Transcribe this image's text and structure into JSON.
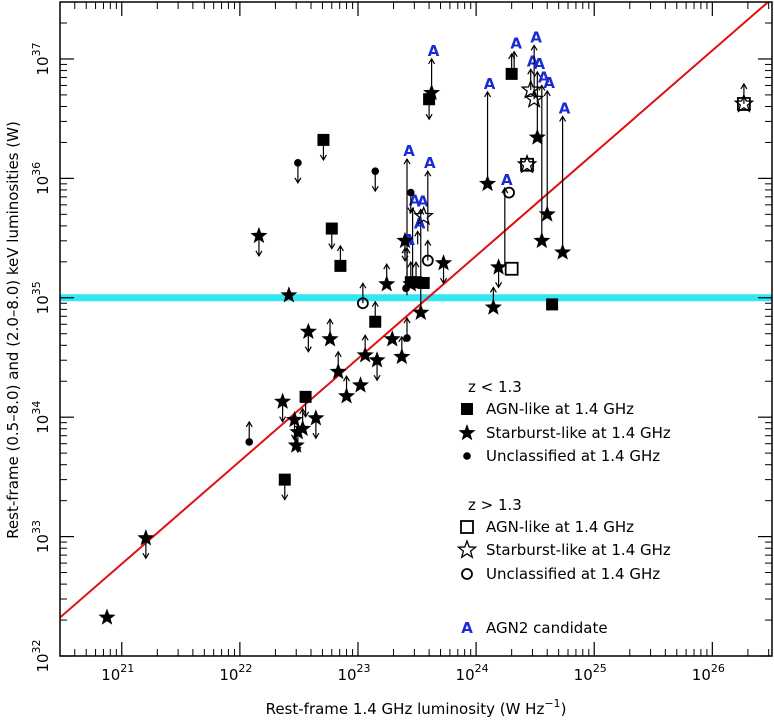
{
  "chart_data": {
    "type": "scatter",
    "xlabel": "Rest-frame 1.4 GHz luminosity (W Hz",
    "xlabel_superscript": "−1",
    "xlabel_suffix": ")",
    "ylabel": "Rest-frame (0.5–8.0) and (2.0–8.0) keV luminosities (W)",
    "xscale": "log",
    "yscale": "log",
    "xlim": [
      3e+20,
      3.2e+26
    ],
    "ylim": [
      1e+32,
      3e+37
    ],
    "x_ticks": [
      {
        "base": "10",
        "exp": "21",
        "value": 1e+21
      },
      {
        "base": "10",
        "exp": "22",
        "value": 1e+22
      },
      {
        "base": "10",
        "exp": "23",
        "value": 1e+23
      },
      {
        "base": "10",
        "exp": "24",
        "value": 1e+24
      },
      {
        "base": "10",
        "exp": "25",
        "value": 1e+25
      },
      {
        "base": "10",
        "exp": "26",
        "value": 1e+26
      }
    ],
    "y_ticks": [
      {
        "base": "10",
        "exp": "32",
        "value": 1e+32
      },
      {
        "base": "10",
        "exp": "33",
        "value": 1e+33
      },
      {
        "base": "10",
        "exp": "34",
        "value": 1e+34
      },
      {
        "base": "10",
        "exp": "35",
        "value": 1e+35
      },
      {
        "base": "10",
        "exp": "36",
        "value": 1e+36
      },
      {
        "base": "10",
        "exp": "37",
        "value": 1e+37
      }
    ],
    "colors": {
      "fit_line": "#e01010",
      "threshold_band": "#33e6f2",
      "agn2": "#1a2bd6",
      "marker": "#000000"
    },
    "fit_line": {
      "x": [
        3e+20,
        3.2e+26
      ],
      "y": [
        2.1e+32,
        3.2e+37
      ]
    },
    "threshold": {
      "y": 1e+35
    },
    "legend": {
      "group1_title": "z < 1.3",
      "group2_title": "z > 1.3",
      "items": [
        {
          "marker": "filled-square",
          "label": "AGN-like at 1.4 GHz"
        },
        {
          "marker": "filled-star",
          "label": "Starburst-like at 1.4 GHz"
        },
        {
          "marker": "filled-circle",
          "label": "Unclassified at 1.4 GHz"
        },
        {
          "marker": "open-square",
          "label": "AGN-like at 1.4 GHz"
        },
        {
          "marker": "open-star",
          "label": "Starburst-like at 1.4 GHz"
        },
        {
          "marker": "open-circle",
          "label": "Unclassified at 1.4 GHz"
        }
      ],
      "agn2_letter": "A",
      "agn2_label": "AGN2 candidate"
    },
    "agn2_pairs": [
      {
        "x": 3.4e+23,
        "y_low": 7.5e+34,
        "y_high": 5.5e+35
      },
      {
        "x": 3.9e+23,
        "y_low": 3.6e+35,
        "y_high": 1.15e+36
      },
      {
        "x": 2.6e+23,
        "y_low": 1.5e+35,
        "y_high": 1.45e+36
      },
      {
        "x": 2.9e+23,
        "y_low": 1.4e+35,
        "y_high": 5.6e+35
      },
      {
        "x": 3.2e+23,
        "y_low": 2.8e+35,
        "y_high": 3.6e+35
      },
      {
        "x": 4.2e+23,
        "y_low": 5.2e+36,
        "y_high": 1e+37
      },
      {
        "x": 1.25e+24,
        "y_low": 9e+35,
        "y_high": 5.3e+36
      },
      {
        "x": 2.1e+24,
        "y_low": 7.6e+36,
        "y_high": 1.15e+37
      },
      {
        "x": 2.9e+24,
        "y_low": 5.5e+36,
        "y_high": 8.2e+36
      },
      {
        "x": 3.1e+24,
        "y_low": 4.6e+36,
        "y_high": 1.3e+37
      },
      {
        "x": 3.3e+24,
        "y_low": 2.2e+36,
        "y_high": 7.8e+36
      },
      {
        "x": 3.6e+24,
        "y_low": 3e+35,
        "y_high": 6e+36
      },
      {
        "x": 4e+24,
        "y_low": 5e+35,
        "y_high": 5.4e+36
      },
      {
        "x": 5.4e+24,
        "y_low": 2.4e+35,
        "y_high": 3.3e+36
      },
      {
        "x": 1.75e+24,
        "y_low": 1.9e+35,
        "y_high": 8.3e+35
      },
      {
        "x": 2.6e+23,
        "y_low": 1.05e+35,
        "y_high": 2.6e+35
      },
      {
        "x": 2.5e+23,
        "y_low": 2.8e+35,
        "y_high": 2.6e+35
      }
    ],
    "series": [
      {
        "marker": "filled-square",
        "points": [
          {
            "x": 5.1e+22,
            "y": 2.1e+36,
            "limit": "down"
          },
          {
            "x": 6e+22,
            "y": 3.8e+35,
            "limit": "down"
          },
          {
            "x": 7.1e+22,
            "y": 1.85e+35,
            "limit": "up"
          },
          {
            "x": 1.4e+23,
            "y": 6.3e+34,
            "limit": "up"
          },
          {
            "x": 3.6e+22,
            "y": 1.48e+34,
            "limit": "down"
          },
          {
            "x": 2.4e+22,
            "y": 3e+33,
            "limit": "down"
          },
          {
            "x": 2.8e+23,
            "y": 1.35e+35,
            "limit": "up"
          },
          {
            "x": 3.1e+23,
            "y": 1.35e+35,
            "limit": "up"
          },
          {
            "x": 3.6e+23,
            "y": 1.33e+35,
            "limit": ""
          },
          {
            "x": 4e+23,
            "y": 4.6e+36,
            "limit": "down"
          },
          {
            "x": 2e+24,
            "y": 7.5e+36,
            "limit": "up"
          },
          {
            "x": 4.4e+24,
            "y": 8.8e+34,
            "limit": ""
          }
        ]
      },
      {
        "marker": "filled-star",
        "points": [
          {
            "x": 1.6e+21,
            "y": 9.7e+32,
            "limit": "down"
          },
          {
            "x": 7.5e+20,
            "y": 2.1e+32,
            "limit": ""
          },
          {
            "x": 1.45e+22,
            "y": 3.3e+35,
            "limit": "down"
          },
          {
            "x": 2.6e+22,
            "y": 1.05e+35,
            "limit": ""
          },
          {
            "x": 2.3e+22,
            "y": 1.35e+34,
            "limit": "down"
          },
          {
            "x": 2.9e+22,
            "y": 9.5e+33,
            "limit": "down"
          },
          {
            "x": 3.1e+22,
            "y": 7.5e+33,
            "limit": "down"
          },
          {
            "x": 3.4e+22,
            "y": 8e+33,
            "limit": "up"
          },
          {
            "x": 3e+22,
            "y": 5.8e+33,
            "limit": ""
          },
          {
            "x": 3.8e+22,
            "y": 5.2e+34,
            "limit": "down"
          },
          {
            "x": 4.4e+22,
            "y": 9.8e+33,
            "limit": "down"
          },
          {
            "x": 5.8e+22,
            "y": 4.5e+34,
            "limit": "up"
          },
          {
            "x": 6.8e+22,
            "y": 2.4e+34,
            "limit": "up"
          },
          {
            "x": 8e+22,
            "y": 1.5e+34,
            "limit": "up"
          },
          {
            "x": 1.05e+23,
            "y": 1.85e+34,
            "limit": ""
          },
          {
            "x": 1.15e+23,
            "y": 3.3e+34,
            "limit": "up"
          },
          {
            "x": 1.45e+23,
            "y": 3e+34,
            "limit": "down"
          },
          {
            "x": 1.75e+23,
            "y": 1.3e+35,
            "limit": "up"
          },
          {
            "x": 1.95e+23,
            "y": 4.5e+34,
            "limit": ""
          },
          {
            "x": 2.35e+23,
            "y": 3.2e+34,
            "limit": "up"
          },
          {
            "x": 2.5e+23,
            "y": 3e+35,
            "limit": "down"
          },
          {
            "x": 2.8e+23,
            "y": 1.3e+35,
            "limit": ""
          },
          {
            "x": 5.3e+23,
            "y": 1.95e+35,
            "limit": "down"
          },
          {
            "x": 1.4e+24,
            "y": 8.3e+34,
            "limit": "up"
          },
          {
            "x": 1.55e+24,
            "y": 1.8e+35,
            "limit": "down"
          },
          {
            "x": 1.25e+24,
            "y": 9e+35,
            "limit": ""
          },
          {
            "x": 3.6e+24,
            "y": 3e+35,
            "limit": ""
          },
          {
            "x": 4e+24,
            "y": 5e+35,
            "limit": ""
          },
          {
            "x": 5.4e+24,
            "y": 2.4e+35,
            "limit": ""
          },
          {
            "x": 3.3e+24,
            "y": 2.2e+36,
            "limit": ""
          },
          {
            "x": 4.2e+23,
            "y": 5.2e+36,
            "limit": ""
          },
          {
            "x": 3.4e+23,
            "y": 7.5e+34,
            "limit": ""
          }
        ]
      },
      {
        "marker": "filled-circle",
        "points": [
          {
            "x": 3.1e+22,
            "y": 1.35e+36,
            "limit": "down"
          },
          {
            "x": 1.4e+23,
            "y": 1.15e+36,
            "limit": "down"
          },
          {
            "x": 2.8e+23,
            "y": 7.6e+35,
            "limit": "down"
          },
          {
            "x": 1.2e+22,
            "y": 6.2e+33,
            "limit": "up"
          },
          {
            "x": 2.6e+23,
            "y": 4.6e+34,
            "limit": "up"
          },
          {
            "x": 2.55e+23,
            "y": 1.2e+35,
            "limit": ""
          }
        ]
      },
      {
        "marker": "open-square",
        "points": [
          {
            "x": 2e+24,
            "y": 1.75e+35,
            "limit": ""
          },
          {
            "x": 2.7e+24,
            "y": 1.3e+36,
            "limit": ""
          },
          {
            "x": 1.85e+26,
            "y": 4.2e+36,
            "limit": "up"
          }
        ]
      },
      {
        "marker": "open-star",
        "points": [
          {
            "x": 2.9e+24,
            "y": 5.5e+36,
            "limit": ""
          },
          {
            "x": 3.1e+24,
            "y": 4.6e+36,
            "limit": ""
          },
          {
            "x": 3.6e+23,
            "y": 4.8e+35,
            "limit": ""
          },
          {
            "x": 2.7e+24,
            "y": 1.3e+36,
            "limit": ""
          },
          {
            "x": 1.85e+26,
            "y": 4.2e+36,
            "limit": ""
          }
        ]
      },
      {
        "marker": "open-circle",
        "points": [
          {
            "x": 1.1e+23,
            "y": 9e+34,
            "limit": "up"
          },
          {
            "x": 3.9e+23,
            "y": 2.05e+35,
            "limit": "up"
          },
          {
            "x": 1.9e+24,
            "y": 7.6e+35,
            "limit": ""
          }
        ]
      }
    ]
  }
}
